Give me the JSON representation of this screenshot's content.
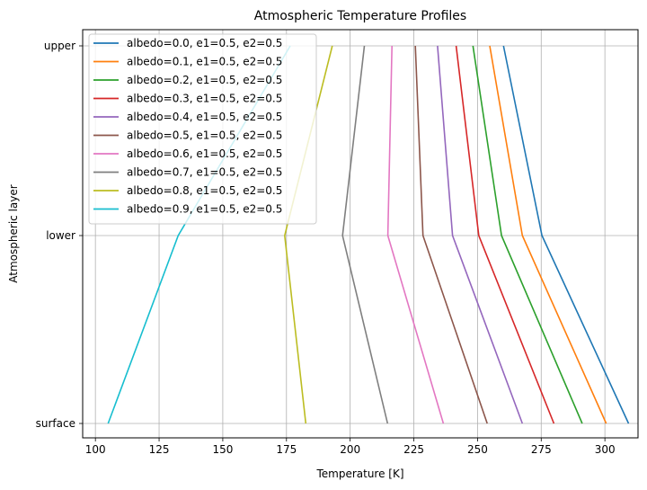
{
  "chart_data": {
    "type": "line",
    "title": "Atmospheric Temperature Profiles",
    "xlabel": "Temperature [K]",
    "ylabel": "Atmospheric layer",
    "xlim": [
      95,
      313
    ],
    "xticks": [
      100,
      125,
      150,
      175,
      200,
      225,
      250,
      275,
      300
    ],
    "categories": [
      "surface",
      "lower",
      "upper"
    ],
    "grid": true,
    "legend_position": "upper-left",
    "series": [
      {
        "name": "albedo=0.0, e1=0.5, e2=0.5",
        "color": "#1f77b4",
        "x": [
          309.3,
          275.3,
          260.2
        ]
      },
      {
        "name": "albedo=0.1, e1=0.5, e2=0.5",
        "color": "#ff7f0e",
        "x": [
          300.5,
          267.6,
          254.8
        ]
      },
      {
        "name": "albedo=0.2, e1=0.5, e2=0.5",
        "color": "#2ca02c",
        "x": [
          291.1,
          259.4,
          248.2
        ]
      },
      {
        "name": "albedo=0.3, e1=0.5, e2=0.5",
        "color": "#d62728",
        "x": [
          280.0,
          250.5,
          241.6
        ]
      },
      {
        "name": "albedo=0.4, e1=0.5, e2=0.5",
        "color": "#9467bd",
        "x": [
          267.6,
          240.2,
          234.3
        ]
      },
      {
        "name": "albedo=0.5, e1=0.5, e2=0.5",
        "color": "#8c564b",
        "x": [
          253.8,
          228.6,
          225.6
        ]
      },
      {
        "name": "albedo=0.6, e1=0.5, e2=0.5",
        "color": "#e377c2",
        "x": [
          236.6,
          214.8,
          216.4
        ]
      },
      {
        "name": "albedo=0.7, e1=0.5, e2=0.5",
        "color": "#7f7f7f",
        "x": [
          214.7,
          197.0,
          205.6
        ]
      },
      {
        "name": "albedo=0.8, e1=0.5, e2=0.5",
        "color": "#bcbd22",
        "x": [
          182.6,
          174.3,
          193.0
        ]
      },
      {
        "name": "albedo=0.9, e1=0.5, e2=0.5",
        "color": "#17becf",
        "x": [
          105.0,
          132.5,
          176.5
        ]
      }
    ]
  }
}
